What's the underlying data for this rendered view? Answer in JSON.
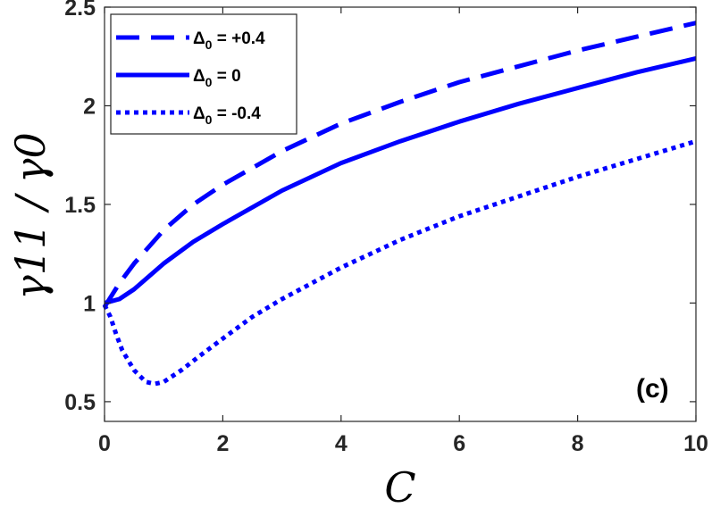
{
  "chart_data": {
    "type": "line",
    "xlabel": "C",
    "ylabel": "γ11 / γ0",
    "xlim": [
      0,
      10
    ],
    "ylim": [
      0.4,
      2.5
    ],
    "xticks": [
      0,
      2,
      4,
      6,
      8,
      10
    ],
    "xtick_labels": [
      "0",
      "2",
      "4",
      "6",
      "8",
      "10"
    ],
    "yticks": [
      0.5,
      1,
      1.5,
      2,
      2.5
    ],
    "ytick_labels": [
      "0.5",
      "1",
      "1.5",
      "2",
      "2.5"
    ],
    "grid": false,
    "legend_position": "top-left",
    "annotation": "(c)",
    "series": [
      {
        "name": "Δ0 = +0.4",
        "legend_symbol": "Δ",
        "legend_subscript": "0",
        "legend_value": " = +0.4",
        "style": "dashed",
        "color": "#0000ff",
        "x": [
          0,
          0.25,
          0.5,
          1,
          1.5,
          2,
          3,
          4,
          5,
          6,
          7,
          8,
          9,
          10
        ],
        "y": [
          0.98,
          1.1,
          1.2,
          1.37,
          1.5,
          1.6,
          1.77,
          1.91,
          2.02,
          2.12,
          2.2,
          2.28,
          2.35,
          2.42
        ]
      },
      {
        "name": "Δ0 = 0",
        "legend_symbol": "Δ",
        "legend_subscript": "0",
        "legend_value": " = 0",
        "style": "solid",
        "color": "#0000ff",
        "x": [
          0,
          0.25,
          0.5,
          1,
          1.5,
          2,
          3,
          4,
          5,
          6,
          7,
          8,
          9,
          10
        ],
        "y": [
          1.0,
          1.02,
          1.07,
          1.2,
          1.31,
          1.4,
          1.57,
          1.71,
          1.82,
          1.92,
          2.01,
          2.09,
          2.17,
          2.24
        ]
      },
      {
        "name": "Δ0 = -0.4",
        "legend_symbol": "Δ",
        "legend_subscript": "0",
        "legend_value": " = -0.4",
        "style": "dotted",
        "color": "#0000ff",
        "x": [
          0,
          0.1,
          0.2,
          0.3,
          0.5,
          0.7,
          0.85,
          1.0,
          1.3,
          1.6,
          2,
          2.5,
          3,
          4,
          5,
          6,
          7,
          8,
          9,
          10
        ],
        "y": [
          0.99,
          0.93,
          0.84,
          0.76,
          0.66,
          0.6,
          0.59,
          0.6,
          0.66,
          0.73,
          0.82,
          0.93,
          1.02,
          1.18,
          1.32,
          1.44,
          1.54,
          1.64,
          1.73,
          1.82
        ]
      }
    ]
  }
}
